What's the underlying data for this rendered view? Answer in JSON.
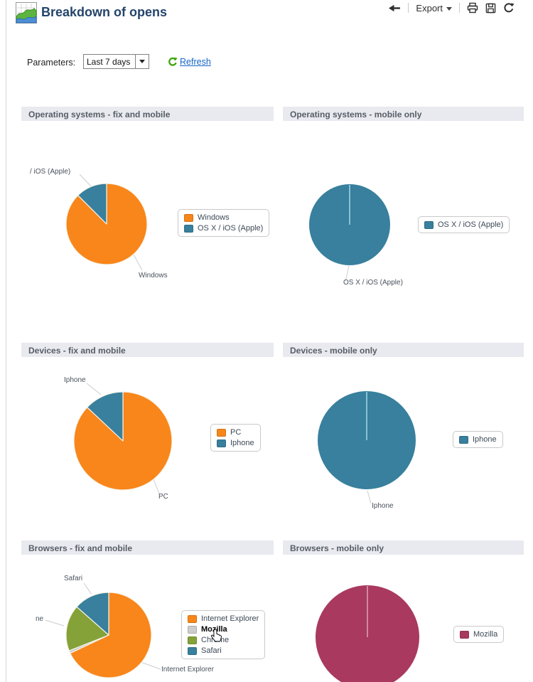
{
  "header": {
    "title": "Breakdown of opens"
  },
  "toolbar": {
    "export_label": "Export"
  },
  "parameters": {
    "label": "Parameters:",
    "selected": "Last 7 days",
    "refresh_label": "Refresh"
  },
  "icons": {
    "logo": "chart",
    "back": "arrow-left",
    "export_caret": "caret-down",
    "print": "printer",
    "save": "floppy-disk",
    "reload": "refresh",
    "refresh_link": "refresh-circular-green",
    "cursor": "hand-pointer"
  },
  "colors": {
    "orange": "#F8861A",
    "teal": "#38809D",
    "green": "#84A238",
    "maroon": "#A9395E",
    "gray": "#CDCDCD",
    "link_blue": "#1563C8",
    "refresh_green": "#3FA50F",
    "section_header_bg": "#E9EAEF"
  },
  "chart_data": [
    {
      "type": "pie",
      "title": "Operating systems - fix and mobile",
      "labels": [
        "Windows",
        "OS X / iOS (Apple)"
      ],
      "values": [
        87.5,
        12.5
      ],
      "colors": [
        "#F8861A",
        "#38809D"
      ],
      "legend_position": "right",
      "callouts": [
        "/ iOS (Apple)",
        "Windows"
      ]
    },
    {
      "type": "pie",
      "title": "Operating systems - mobile only",
      "labels": [
        "OS X / iOS (Apple)"
      ],
      "values": [
        100
      ],
      "colors": [
        "#38809D"
      ],
      "tick": "#9FD0E4",
      "legend_position": "right",
      "callouts": [
        "OS X / iOS (Apple)"
      ]
    },
    {
      "type": "pie",
      "title": "Devices - fix and mobile",
      "labels": [
        "PC",
        "Iphone"
      ],
      "values": [
        87,
        13
      ],
      "colors": [
        "#F8861A",
        "#38809D"
      ],
      "legend_position": "right",
      "callouts": [
        "Iphone",
        "PC"
      ]
    },
    {
      "type": "pie",
      "title": "Devices - mobile only",
      "labels": [
        "Iphone"
      ],
      "values": [
        100
      ],
      "colors": [
        "#38809D"
      ],
      "tick": "#9FD0E4",
      "legend_position": "right",
      "callouts": [
        "Iphone"
      ]
    },
    {
      "type": "pie",
      "title": "Browsers - fix and mobile",
      "labels": [
        "Internet Explorer",
        "Mozilla",
        "Chrome",
        "Safari"
      ],
      "values": [
        68,
        1,
        17.5,
        13.5
      ],
      "colors": [
        "#F8861A",
        "#CDCDCD",
        "#84A238",
        "#38809D"
      ],
      "legend_position": "right",
      "highlighted": "Mozilla",
      "callouts": [
        "Safari",
        "ne",
        "Internet Explorer"
      ]
    },
    {
      "type": "pie",
      "title": "Browsers - mobile only",
      "labels": [
        "Mozilla"
      ],
      "values": [
        100
      ],
      "colors": [
        "#A9395E"
      ],
      "tick": "#DB9DB6",
      "legend_position": "right",
      "callouts": []
    }
  ]
}
